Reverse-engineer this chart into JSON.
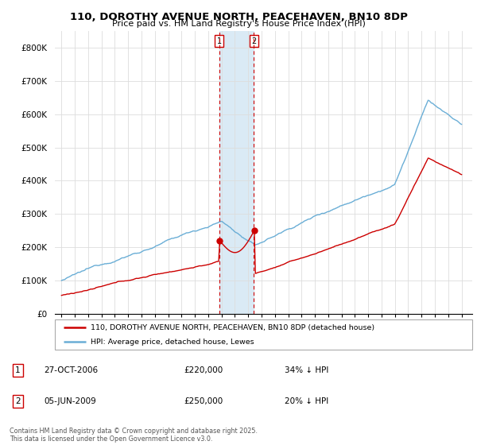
{
  "title": "110, DOROTHY AVENUE NORTH, PEACEHAVEN, BN10 8DP",
  "subtitle": "Price paid vs. HM Land Registry's House Price Index (HPI)",
  "legend_line1": "110, DOROTHY AVENUE NORTH, PEACEHAVEN, BN10 8DP (detached house)",
  "legend_line2": "HPI: Average price, detached house, Lewes",
  "transaction1_date": "27-OCT-2006",
  "transaction1_price": "£220,000",
  "transaction1_hpi": "34% ↓ HPI",
  "transaction2_date": "05-JUN-2009",
  "transaction2_price": "£250,000",
  "transaction2_hpi": "20% ↓ HPI",
  "footer": "Contains HM Land Registry data © Crown copyright and database right 2025.\nThis data is licensed under the Open Government Licence v3.0.",
  "hpi_color": "#6aaed6",
  "price_color": "#cc0000",
  "highlight_color": "#daeaf5",
  "transaction1_x": 2006.83,
  "transaction2_x": 2009.43,
  "ylim_min": 0,
  "ylim_max": 850000,
  "xlim_min": 1994.5,
  "xlim_max": 2025.8
}
